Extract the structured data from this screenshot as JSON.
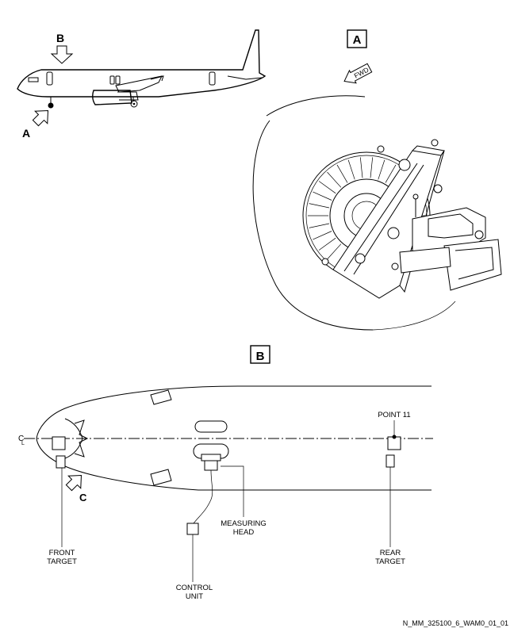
{
  "views": {
    "aircraft": {
      "arrow_a_label": "A",
      "arrow_b_label": "B"
    },
    "detail_a": {
      "box_label": "A",
      "direction_label": "FWD"
    },
    "detail_b": {
      "box_label": "B",
      "centerline_label": "C",
      "centerline_sub": "L",
      "arrow_c_label": "C",
      "point_label": "POINT 11",
      "front_target_line1": "FRONT",
      "front_target_line2": "TARGET",
      "measuring_head_line1": "MEASURING",
      "measuring_head_line2": "HEAD",
      "rear_target_line1": "REAR",
      "rear_target_line2": "TARGET",
      "control_unit_line1": "CONTROL",
      "control_unit_line2": "UNIT"
    }
  },
  "figure_reference": "N_MM_325100_6_WAM0_01_01"
}
